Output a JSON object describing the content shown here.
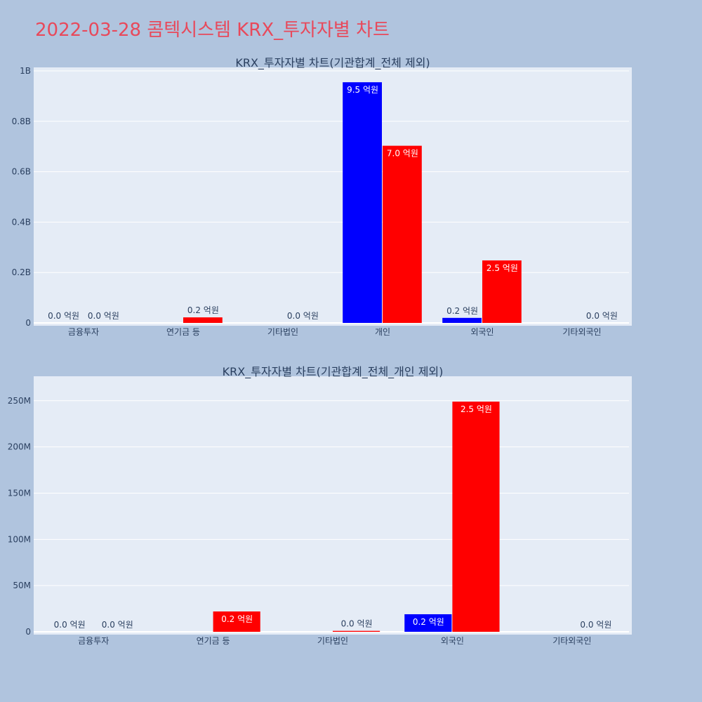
{
  "page": {
    "title": "2022-03-28 콤텍시스템 KRX_투자자별 차트"
  },
  "colors": {
    "background": "#b0c4de",
    "plot_bg": "#e5ecf6",
    "title": "#e8495b",
    "text": "#2a3f5f"
  },
  "chart_data": [
    {
      "type": "bar",
      "title": "KRX_투자자별 차트(기관합계_전체 제외)",
      "categories": [
        "금융투자",
        "연기금 등",
        "기타법인",
        "개인",
        "외국인",
        "기타외국인"
      ],
      "series": [
        {
          "color": "#0000ff",
          "values": [
            0,
            null,
            null,
            955000000,
            20000000,
            null
          ],
          "labels": [
            "0.0 억원",
            null,
            null,
            "9.5 억원",
            "0.2 억원",
            null
          ]
        },
        {
          "color": "#ff0000",
          "values": [
            0,
            22000000,
            0,
            703000000,
            248000000,
            0
          ],
          "labels": [
            "0.0 억원",
            "0.2 억원",
            "0.0 억원",
            "7.0 억원",
            "2.5 억원",
            "0.0 억원"
          ]
        }
      ],
      "ylim": [
        0,
        1000000000
      ],
      "yticks": [
        0,
        200000000,
        400000000,
        600000000,
        800000000,
        1000000000
      ],
      "yticklabels": [
        "0",
        "0.2B",
        "0.4B",
        "0.6B",
        "0.8B",
        "1B"
      ],
      "grid": true
    },
    {
      "type": "bar",
      "title": "KRX_투자자별 차트(기관합계_전체_개인 제외)",
      "categories": [
        "금융투자",
        "연기금 등",
        "기타법인",
        "외국인",
        "기타외국인"
      ],
      "series": [
        {
          "color": "#0000ff",
          "values": [
            0,
            null,
            null,
            19000000,
            null
          ],
          "labels": [
            "0.0 억원",
            null,
            null,
            "0.2 억원",
            null
          ]
        },
        {
          "color": "#ff0000",
          "values": [
            0,
            22000000,
            1000000,
            249000000,
            0
          ],
          "labels": [
            "0.0 억원",
            "0.2 억원",
            "0.0 억원",
            "2.5 억원",
            "0.0 억원"
          ]
        }
      ],
      "ylim": [
        0,
        262000000
      ],
      "yticks": [
        0,
        50000000,
        100000000,
        150000000,
        200000000,
        250000000
      ],
      "yticklabels": [
        "0",
        "50M",
        "100M",
        "150M",
        "200M",
        "250M"
      ],
      "grid": true
    }
  ]
}
